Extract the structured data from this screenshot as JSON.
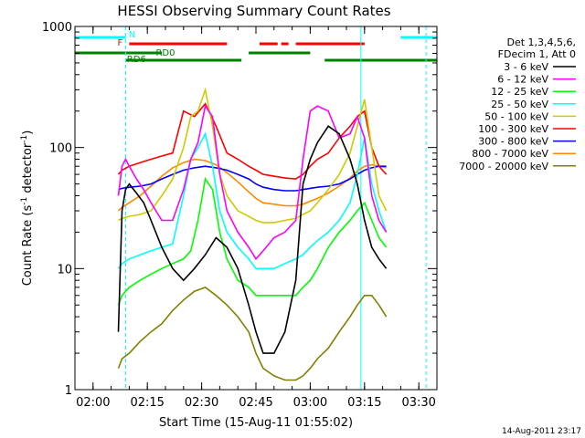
{
  "chart_data": {
    "type": "line",
    "title": "HESSI Observing Summary Count Rates",
    "xlabel": "Start Time (15-Aug-11 01:55:02)",
    "ylabel_main": "Count Rate (s",
    "ylabel_exp1": "-1",
    "ylabel_mid": " detector",
    "ylabel_exp2": "-1",
    "ylabel_end": ")",
    "x_unit": "minutes after 01:55:02",
    "xlim": [
      0,
      100
    ],
    "ylim": [
      1,
      1000
    ],
    "y_scale": "log",
    "x_ticks": [
      {
        "label": "02:00",
        "x": 5
      },
      {
        "label": "02:15",
        "x": 20
      },
      {
        "label": "02:30",
        "x": 35
      },
      {
        "label": "02:45",
        "x": 50
      },
      {
        "label": "03:00",
        "x": 65
      },
      {
        "label": "03:15",
        "x": 80
      },
      {
        "label": "03:30",
        "x": 95
      }
    ],
    "y_ticks": [
      {
        "label": "1",
        "y": 1
      },
      {
        "label": "10",
        "y": 10
      },
      {
        "label": "100",
        "y": 100
      },
      {
        "label": "1000",
        "y": 1000
      }
    ],
    "legend": {
      "placement": "right",
      "header": [
        "Det 1,3,4,5,6,",
        "FDecim 1, Att 0"
      ],
      "entries": [
        {
          "name": "3 - 6 keV",
          "color": "#000000"
        },
        {
          "name": "6 - 12 keV",
          "color": "#ff00ff"
        },
        {
          "name": "12 - 25 keV",
          "color": "#00ff00"
        },
        {
          "name": "25 - 50 keV",
          "color": "#00ffff"
        },
        {
          "name": "50 - 100 keV",
          "color": "#cccc00"
        },
        {
          "name": "100 - 300 keV",
          "color": "#ff0000"
        },
        {
          "name": "300 - 800 keV",
          "color": "#0000ff"
        },
        {
          "name": "800 - 7000 keV",
          "color": "#ff8800"
        },
        {
          "name": "7000 - 20000 keV",
          "color": "#808000"
        }
      ]
    },
    "status_bars": [
      {
        "label": "N",
        "color": "#00ffff",
        "segments": [
          [
            0,
            14
          ],
          [
            90,
            100
          ]
        ]
      },
      {
        "label": "F",
        "color": "#ff0000",
        "segments": [
          [
            15,
            42
          ],
          [
            51,
            56
          ],
          [
            57,
            59
          ],
          [
            61,
            80
          ]
        ]
      },
      {
        "label": "RD0",
        "color": "#008000",
        "segments": [
          [
            0,
            24
          ],
          [
            48,
            65
          ]
        ]
      },
      {
        "label": "RD6",
        "color": "#008000",
        "segments": [
          [
            14,
            46
          ],
          [
            69,
            100
          ]
        ]
      }
    ],
    "vertical_markers": [
      {
        "x": 14,
        "color": "#00ffff",
        "style": "dashed"
      },
      {
        "x": 79,
        "color": "#00ffff",
        "style": "solid"
      },
      {
        "x": 97,
        "color": "#00ffff",
        "style": "dashed"
      }
    ],
    "series": [
      {
        "name": "3 - 6 keV",
        "color": "#000000",
        "x": [
          12,
          13,
          14,
          15,
          17,
          19,
          21,
          24,
          27,
          30,
          33,
          36,
          39,
          42,
          45,
          48,
          50,
          52,
          55,
          58,
          61,
          63,
          65,
          67,
          70,
          73,
          76,
          78,
          80,
          82,
          84,
          86
        ],
        "y": [
          3,
          30,
          45,
          50,
          42,
          35,
          25,
          15,
          10,
          8,
          10,
          13,
          18,
          15,
          10,
          5,
          3,
          2,
          2,
          3,
          8,
          50,
          80,
          110,
          150,
          130,
          80,
          50,
          25,
          15,
          12,
          10
        ]
      },
      {
        "name": "6 - 12 keV",
        "color": "#ff00ff",
        "x": [
          12,
          13,
          14,
          15,
          17,
          19,
          21,
          24,
          27,
          30,
          32,
          34,
          36,
          38,
          40,
          42,
          45,
          48,
          50,
          52,
          55,
          58,
          61,
          63,
          65,
          67,
          70,
          73,
          76,
          78,
          80,
          82,
          84,
          86
        ],
        "y": [
          40,
          70,
          80,
          70,
          55,
          45,
          35,
          25,
          25,
          45,
          80,
          110,
          220,
          180,
          60,
          30,
          20,
          15,
          12,
          14,
          18,
          20,
          25,
          80,
          200,
          220,
          200,
          120,
          130,
          180,
          120,
          40,
          25,
          20
        ]
      },
      {
        "name": "12 - 25 keV",
        "color": "#00ff00",
        "x": [
          12,
          13,
          15,
          18,
          21,
          24,
          27,
          30,
          32,
          34,
          36,
          38,
          40,
          42,
          45,
          48,
          50,
          52,
          55,
          58,
          61,
          63,
          65,
          67,
          70,
          73,
          76,
          78,
          80,
          82,
          84,
          86
        ],
        "y": [
          5,
          6,
          7,
          8,
          9,
          10,
          11,
          12,
          14,
          25,
          55,
          45,
          20,
          12,
          8,
          7,
          6,
          6,
          6,
          6,
          6,
          7,
          8,
          10,
          15,
          20,
          25,
          30,
          35,
          25,
          18,
          15
        ]
      },
      {
        "name": "25 - 50 keV",
        "color": "#00ffff",
        "x": [
          12,
          13,
          15,
          18,
          21,
          24,
          27,
          30,
          32,
          34,
          36,
          38,
          40,
          42,
          45,
          48,
          50,
          52,
          55,
          58,
          61,
          63,
          65,
          67,
          70,
          73,
          76,
          78,
          80,
          82,
          84,
          86
        ],
        "y": [
          10,
          11,
          12,
          13,
          14,
          15,
          16,
          40,
          80,
          100,
          130,
          70,
          30,
          20,
          15,
          12,
          10,
          10,
          10,
          11,
          12,
          13,
          15,
          17,
          20,
          25,
          35,
          60,
          120,
          50,
          30,
          20
        ]
      },
      {
        "name": "50 - 100 keV",
        "color": "#cccc00",
        "x": [
          12,
          13,
          15,
          18,
          21,
          24,
          27,
          30,
          32,
          34,
          36,
          38,
          40,
          42,
          45,
          48,
          50,
          52,
          55,
          58,
          61,
          63,
          65,
          67,
          70,
          73,
          76,
          78,
          80,
          82,
          84,
          86
        ],
        "y": [
          25,
          26,
          27,
          28,
          30,
          40,
          55,
          100,
          180,
          200,
          300,
          150,
          60,
          40,
          30,
          27,
          25,
          24,
          24,
          25,
          26,
          28,
          30,
          35,
          45,
          60,
          90,
          150,
          250,
          100,
          40,
          30
        ]
      },
      {
        "name": "100 - 300 keV",
        "color": "#ff0000",
        "x": [
          12,
          13,
          15,
          18,
          21,
          24,
          27,
          30,
          33,
          36,
          39,
          42,
          45,
          48,
          50,
          52,
          55,
          58,
          61,
          63,
          65,
          67,
          70,
          73,
          76,
          78,
          80,
          82,
          84,
          86
        ],
        "y": [
          60,
          65,
          70,
          75,
          80,
          85,
          90,
          200,
          180,
          230,
          150,
          90,
          80,
          70,
          65,
          60,
          58,
          56,
          55,
          60,
          70,
          80,
          90,
          120,
          150,
          180,
          200,
          100,
          70,
          60
        ]
      },
      {
        "name": "300 - 800 keV",
        "color": "#0000ff",
        "x": [
          12,
          13,
          15,
          18,
          21,
          24,
          27,
          30,
          33,
          36,
          39,
          42,
          45,
          48,
          50,
          52,
          55,
          58,
          61,
          63,
          65,
          67,
          70,
          73,
          76,
          78,
          80,
          82,
          84,
          86
        ],
        "y": [
          45,
          46,
          47,
          48,
          50,
          55,
          60,
          65,
          68,
          70,
          68,
          65,
          60,
          55,
          50,
          47,
          45,
          44,
          44,
          45,
          46,
          47,
          48,
          50,
          55,
          60,
          65,
          68,
          70,
          70
        ]
      },
      {
        "name": "800 - 7000 keV",
        "color": "#ff8800",
        "x": [
          12,
          13,
          15,
          18,
          21,
          24,
          27,
          30,
          33,
          36,
          39,
          42,
          45,
          48,
          50,
          52,
          55,
          58,
          61,
          63,
          65,
          67,
          70,
          73,
          76,
          78,
          80,
          82,
          84,
          86
        ],
        "y": [
          30,
          32,
          35,
          40,
          48,
          58,
          68,
          75,
          80,
          78,
          72,
          62,
          52,
          43,
          38,
          35,
          34,
          33,
          33,
          34,
          36,
          38,
          42,
          48,
          56,
          64,
          70,
          72,
          70,
          68
        ]
      },
      {
        "name": "7000 - 20000 keV",
        "color": "#808000",
        "x": [
          12,
          13,
          15,
          18,
          21,
          24,
          27,
          30,
          33,
          36,
          39,
          42,
          45,
          48,
          50,
          52,
          55,
          58,
          61,
          63,
          65,
          67,
          70,
          73,
          76,
          78,
          80,
          82,
          84,
          86
        ],
        "y": [
          1.5,
          1.8,
          2,
          2.5,
          3,
          3.5,
          4.5,
          5.5,
          6.5,
          7,
          6,
          5,
          4,
          3,
          2,
          1.5,
          1.3,
          1.2,
          1.2,
          1.3,
          1.5,
          1.8,
          2.2,
          3,
          4,
          5,
          6,
          6,
          5,
          4
        ]
      }
    ]
  },
  "footer": {
    "timestamp": "14-Aug-2011 23:17"
  }
}
